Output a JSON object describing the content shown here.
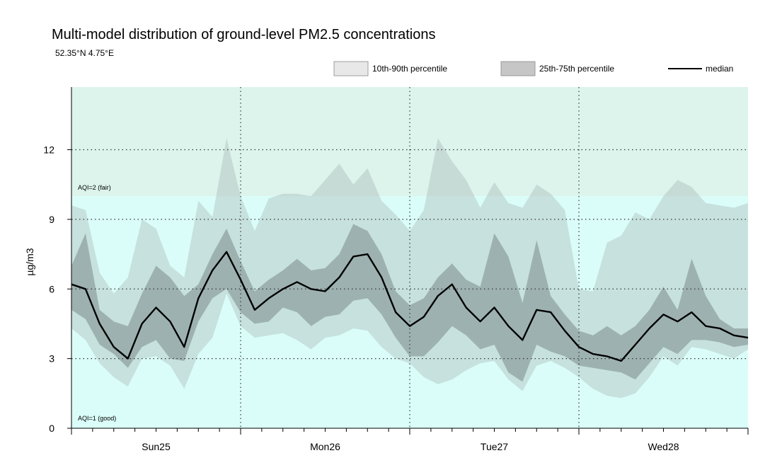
{
  "title": "Multi-model distribution of ground-level PM2.5 concentrations",
  "subtitle": "52.35°N 4.75°E",
  "chart_data": {
    "type": "area",
    "ylabel": "µg/m3",
    "ylim": [
      0,
      14.7
    ],
    "yticks": [
      0,
      3,
      6,
      9,
      12
    ],
    "xlim": [
      0,
      96
    ],
    "x_tick_labels": [
      {
        "label": "Sun25",
        "x": 12
      },
      {
        "label": "Mon26",
        "x": 36
      },
      {
        "label": "Tue27",
        "x": 60
      },
      {
        "label": "Wed28",
        "x": 84
      }
    ],
    "day_boundaries": [
      24,
      48,
      72
    ],
    "grid": true,
    "legend_position": "top-right",
    "legend": [
      {
        "label": "10th-90th percentile",
        "color": "#e8e8e8"
      },
      {
        "label": "25th-75th percentile",
        "color": "#c6c6c6"
      },
      {
        "label": "median",
        "color": "#000000"
      }
    ],
    "aqi_bands": [
      {
        "label": "AQI=1 (good)",
        "from": 0,
        "to": 10,
        "color": "#dafdf9"
      },
      {
        "label": "AQI=2 (fair)",
        "from": 10,
        "to": 14.7,
        "color": "#dcf4ec"
      }
    ],
    "x": [
      0,
      2,
      4,
      6,
      8,
      10,
      12,
      14,
      16,
      18,
      20,
      22,
      24,
      26,
      28,
      30,
      32,
      34,
      36,
      38,
      40,
      42,
      44,
      46,
      48,
      50,
      52,
      54,
      56,
      58,
      60,
      62,
      64,
      66,
      68,
      70,
      72,
      74,
      76,
      78,
      80,
      82,
      84,
      86,
      88,
      90,
      92,
      94,
      96
    ],
    "series": [
      {
        "name": "median",
        "values": [
          6.2,
          6.0,
          4.5,
          3.5,
          3.0,
          4.5,
          5.2,
          4.6,
          3.5,
          5.6,
          6.8,
          7.6,
          6.4,
          5.1,
          5.6,
          6.0,
          6.3,
          6.0,
          5.9,
          6.5,
          7.4,
          7.5,
          6.5,
          5.0,
          4.4,
          4.8,
          5.7,
          6.2,
          5.2,
          4.6,
          5.2,
          4.4,
          3.8,
          5.1,
          5.0,
          4.2,
          3.5,
          3.2,
          3.1,
          2.9,
          3.6,
          4.3,
          4.9,
          4.6,
          5.0,
          4.4,
          4.3,
          4.0,
          3.9
        ]
      },
      {
        "name": "25th percentile",
        "values": [
          5.1,
          4.7,
          3.6,
          3.2,
          2.6,
          3.5,
          3.8,
          3.0,
          2.9,
          4.6,
          5.6,
          6.0,
          5.0,
          4.5,
          4.6,
          5.2,
          5.0,
          4.4,
          4.8,
          4.9,
          5.5,
          5.6,
          4.9,
          3.9,
          3.1,
          3.1,
          3.7,
          4.4,
          4.0,
          3.4,
          3.6,
          2.4,
          2.0,
          3.6,
          3.3,
          3.1,
          2.7,
          2.6,
          2.5,
          2.4,
          2.1,
          2.8,
          3.5,
          3.2,
          3.8,
          3.8,
          3.7,
          3.5,
          3.6
        ]
      },
      {
        "name": "75th percentile",
        "values": [
          7.0,
          8.4,
          5.1,
          4.6,
          4.4,
          5.8,
          7.0,
          6.5,
          5.7,
          6.2,
          7.5,
          8.6,
          7.2,
          5.9,
          6.4,
          6.8,
          7.3,
          6.8,
          6.9,
          7.5,
          8.8,
          8.5,
          7.5,
          5.9,
          5.3,
          5.6,
          6.5,
          7.1,
          6.4,
          6.1,
          8.4,
          7.4,
          5.4,
          8.1,
          5.7,
          4.9,
          4.2,
          4.0,
          4.4,
          4.0,
          4.4,
          5.1,
          6.1,
          5.1,
          7.3,
          5.7,
          4.7,
          4.3,
          4.3
        ]
      },
      {
        "name": "10th percentile",
        "values": [
          4.3,
          3.8,
          2.8,
          2.2,
          1.8,
          3.0,
          3.1,
          2.7,
          1.7,
          3.2,
          3.9,
          5.8,
          4.4,
          3.9,
          4.0,
          4.1,
          3.8,
          3.4,
          3.9,
          4.0,
          4.3,
          4.2,
          3.5,
          3.0,
          2.8,
          2.2,
          1.9,
          2.1,
          2.5,
          2.8,
          2.9,
          2.1,
          1.6,
          2.7,
          2.9,
          2.6,
          2.2,
          1.7,
          1.4,
          1.3,
          1.5,
          2.2,
          3.1,
          2.7,
          3.5,
          3.4,
          3.2,
          3.0,
          3.4
        ]
      },
      {
        "name": "90th percentile",
        "values": [
          9.6,
          9.4,
          6.7,
          5.8,
          6.5,
          9.0,
          8.6,
          7.0,
          6.5,
          9.8,
          9.1,
          12.5,
          10.0,
          8.5,
          9.9,
          10.1,
          10.1,
          10.0,
          10.7,
          11.4,
          10.5,
          11.2,
          9.8,
          9.2,
          8.5,
          9.4,
          12.5,
          11.5,
          10.7,
          9.5,
          10.6,
          9.7,
          9.5,
          10.5,
          10.1,
          9.4,
          6.0,
          5.9,
          8.0,
          8.3,
          9.3,
          9.0,
          10.0,
          10.7,
          10.4,
          9.7,
          9.6,
          9.5,
          9.7
        ]
      }
    ]
  }
}
